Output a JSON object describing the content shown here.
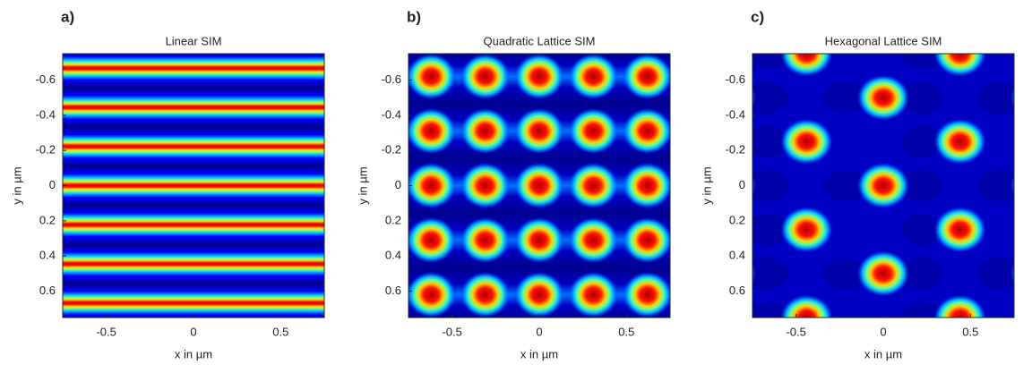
{
  "chart_data": [
    {
      "type": "heatmap",
      "pattern": "linear",
      "panel_label": "a)",
      "title": "Linear SIM",
      "x_label": "x in µm",
      "y_label": "y in µm",
      "xlim": [
        -0.75,
        0.75
      ],
      "ylim": [
        -0.75,
        0.75
      ],
      "y_reversed": true,
      "xticks": [
        -0.5,
        0,
        0.5
      ],
      "yticks": [
        -0.6,
        -0.4,
        -0.2,
        0,
        0.2,
        0.4,
        0.6
      ]
    },
    {
      "type": "heatmap",
      "pattern": "quadratic",
      "panel_label": "b)",
      "title": "Quadratic Lattice SIM",
      "x_label": "x in µm",
      "y_label": "y in µm",
      "xlim": [
        -0.75,
        0.75
      ],
      "ylim": [
        -0.75,
        0.75
      ],
      "y_reversed": true,
      "xticks": [
        -0.5,
        0,
        0.5
      ],
      "yticks": [
        -0.6,
        -0.4,
        -0.2,
        0,
        0.2,
        0.4,
        0.6
      ]
    },
    {
      "type": "heatmap",
      "pattern": "hexagonal",
      "panel_label": "c)",
      "title": "Hexagonal Lattice SIM",
      "x_label": "x in µm",
      "y_label": "y in µm",
      "xlim": [
        -0.75,
        0.75
      ],
      "ylim": [
        -0.75,
        0.75
      ],
      "y_reversed": true,
      "xticks": [
        -0.5,
        0,
        0.5
      ],
      "yticks": [
        -0.6,
        -0.4,
        -0.2,
        0,
        0.2,
        0.4,
        0.6
      ]
    }
  ]
}
